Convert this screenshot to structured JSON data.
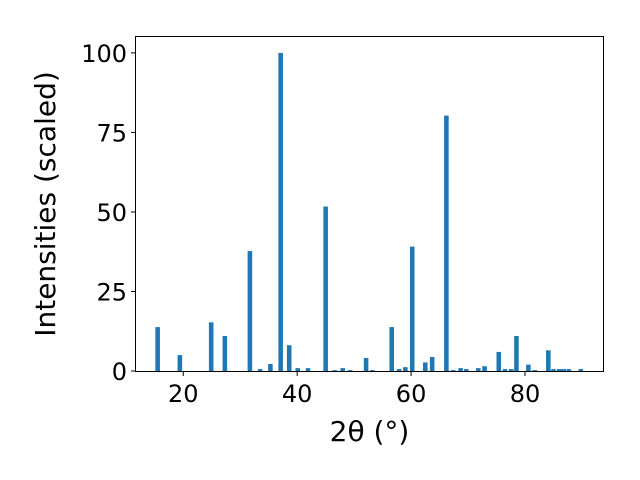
{
  "chart_data": {
    "type": "bar",
    "title": "",
    "xlabel": "2θ (°)",
    "ylabel": "Intensities (scaled)",
    "xlim": [
      11.7,
      93.7
    ],
    "ylim": [
      0,
      105
    ],
    "xticks": [
      20,
      40,
      60,
      80
    ],
    "yticks": [
      0,
      25,
      50,
      75,
      100
    ],
    "grid": false,
    "legend": "none",
    "bar_color": "#1f77b4",
    "bar_width": 0.8,
    "x": [
      15.5,
      19.4,
      24.9,
      27.3,
      31.7,
      33.5,
      35.3,
      37.1,
      38.6,
      40.1,
      41.9,
      45.0,
      46.6,
      48.0,
      49.3,
      52.1,
      53.2,
      56.6,
      57.9,
      59.0,
      60.2,
      62.5,
      63.7,
      66.2,
      67.4,
      68.7,
      69.7,
      71.8,
      72.9,
      75.4,
      76.5,
      77.6,
      78.5,
      80.6,
      81.7,
      84.1,
      85.0,
      86.0,
      86.8,
      87.7,
      89.8
    ],
    "y": [
      13.8,
      5.0,
      15.3,
      11.0,
      37.7,
      0.6,
      2.2,
      100.0,
      8.1,
      0.9,
      0.9,
      51.7,
      0.3,
      0.9,
      0.3,
      4.1,
      0.3,
      13.8,
      0.6,
      1.2,
      39.1,
      2.7,
      4.4,
      80.3,
      0.3,
      0.9,
      0.6,
      0.9,
      1.5,
      6.0,
      0.6,
      0.6,
      11.0,
      2.0,
      0.3,
      6.5,
      0.6,
      0.6,
      0.6,
      0.6,
      0.6
    ]
  }
}
